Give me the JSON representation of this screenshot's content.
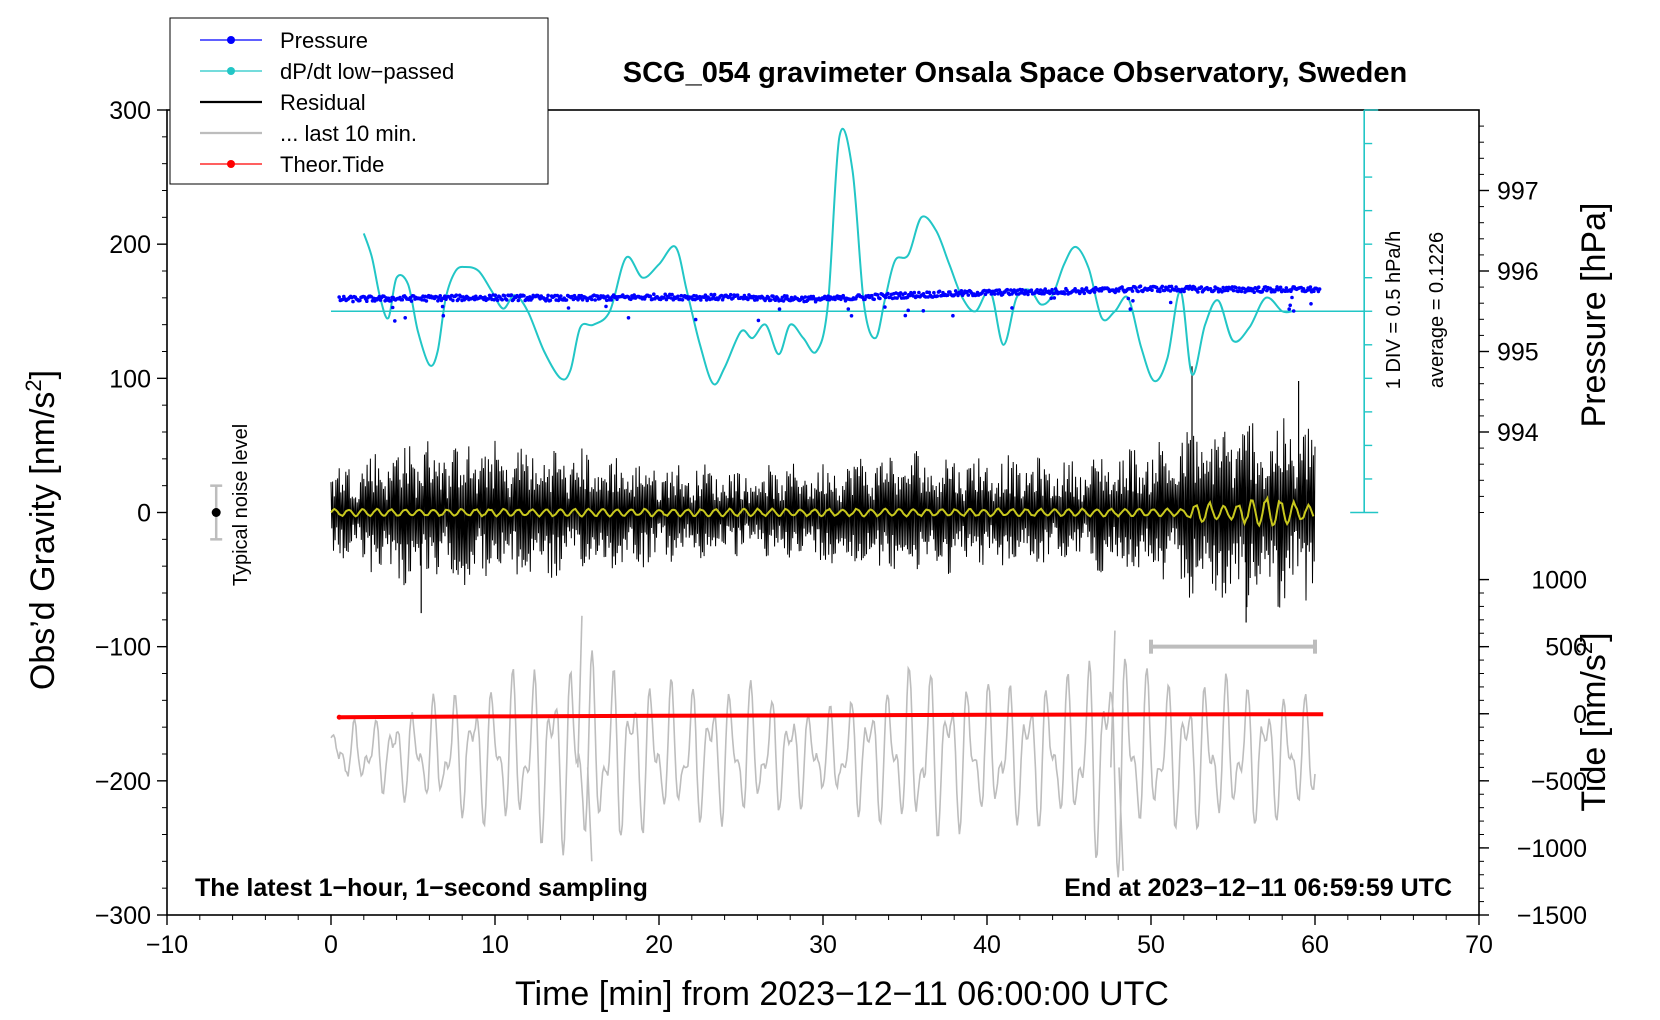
{
  "chart_data": {
    "type": "line",
    "title": "SCG_054 gravimeter Onsala Space Observatory, Sweden",
    "xlabel": "Time [min] from 2023−12−11 06:00:00 UTC",
    "ylabel": "Obs’d Gravity [nm/s²]",
    "ylabel_main": "Obs’d Gravity [nm/s",
    "ylabel_sup": "2",
    "ylabel_end": "]",
    "y2label_pressure": "Pressure [hPa]",
    "y2label_tide_main": "Tide [nm/s",
    "y2label_tide_sup": "2",
    "y2label_tide_end": "]",
    "xlim": [
      -10,
      70
    ],
    "ylim": [
      -300,
      300
    ],
    "x_ticks": [
      -10,
      0,
      10,
      20,
      30,
      40,
      50,
      60,
      70
    ],
    "x_tick_labels": [
      "−10",
      "0",
      "10",
      "20",
      "30",
      "40",
      "50",
      "60",
      "70"
    ],
    "y_ticks": [
      -300,
      -200,
      -100,
      0,
      100,
      200,
      300
    ],
    "y_tick_labels": [
      "−300",
      "−200",
      "−100",
      "0",
      "100",
      "200",
      "300"
    ],
    "pressure_ticks": [
      994,
      995,
      996,
      997
    ],
    "pressure_tick_labels": [
      "994",
      "995",
      "996",
      "997"
    ],
    "pressure_mapping": {
      "hpa_at_gravity_0": 993.0,
      "gravity_per_hpa": 60
    },
    "tide_ticks": [
      -1500,
      -1000,
      -500,
      0,
      500,
      1000
    ],
    "tide_tick_labels": [
      "−1500",
      "−1000",
      "−500",
      "0",
      "500",
      "1000"
    ],
    "tide_mapping": {
      "tide_0_at_gravity": -150,
      "gravity_per_tide": 0.1
    },
    "legend": [
      {
        "label": "Pressure",
        "color": "#0000ff",
        "marker": true
      },
      {
        "label": "dP/dt low−passed",
        "color": "#22c6c6",
        "marker": true
      },
      {
        "label": "Residual",
        "color": "#000000",
        "marker": false
      },
      {
        "label": "... last 10 min.",
        "color": "#bdbdbd",
        "marker": false
      },
      {
        "label": "Theor.Tide",
        "color": "#ff0000",
        "marker": true
      }
    ],
    "annotations": {
      "left_note": "The latest 1−hour, 1−second sampling",
      "right_note": "End at 2023−12−11 06:59:59 UTC",
      "noise_label": "Typical noise level",
      "dpdt_scale": "1 DIV = 0.5 hPa/h",
      "dpdt_average": "average = 0.1226"
    },
    "noise_bar": {
      "x": -7,
      "center": 0,
      "half_range": 20
    },
    "gray_scale_bar": {
      "x_start": 50,
      "x_end": 60,
      "y": -100
    },
    "dpdt_scale_axis": {
      "x": 63,
      "y_top": 300,
      "y_bottom": 0,
      "divisions": 12
    },
    "series": [
      {
        "name": "Pressure",
        "color": "#0000ff",
        "unit": "hPa",
        "x": [
          0.5,
          5,
          10,
          15,
          20,
          25,
          30,
          35,
          40,
          45,
          50,
          55,
          60
        ],
        "values": [
          995.65,
          995.66,
          995.67,
          995.66,
          995.68,
          995.67,
          995.65,
          995.7,
          995.73,
          995.75,
          995.78,
          995.77,
          995.77
        ]
      },
      {
        "name": "dP/dt low−passed",
        "color": "#22c6c6",
        "unit": "nm/s² plot scale",
        "baseline": 150,
        "x": [
          2,
          2.5,
          3,
          3.5,
          4,
          4.7,
          5.3,
          6,
          6.5,
          7,
          7.6,
          8.2,
          9,
          9.8,
          10.5,
          11.2,
          12,
          13,
          14,
          14.6,
          15.2,
          16,
          17,
          18,
          19,
          20,
          21,
          21.7,
          22.5,
          23.3,
          24,
          25,
          25.7,
          26.5,
          27.3,
          28,
          28.8,
          29.6,
          30.3,
          31,
          31.8,
          32.5,
          33.2,
          33.8,
          34.4,
          35.2,
          36,
          36.9,
          37.7,
          38.5,
          39.3,
          40.2,
          41,
          41.8,
          42.6,
          43.3,
          44,
          44.7,
          45.4,
          46.2,
          47,
          47.8,
          48.6,
          49.4,
          50.2,
          51,
          51.8,
          52.5,
          53.3,
          54.1,
          55,
          56,
          57,
          58,
          58.6
        ],
        "values": [
          208,
          190,
          160,
          145,
          175,
          170,
          135,
          110,
          120,
          160,
          180,
          183,
          180,
          165,
          152,
          162,
          150,
          120,
          100,
          106,
          138,
          140,
          150,
          190,
          175,
          185,
          198,
          165,
          125,
          96,
          108,
          135,
          130,
          140,
          118,
          140,
          130,
          120,
          155,
          280,
          255,
          155,
          130,
          160,
          188,
          192,
          220,
          210,
          185,
          160,
          150,
          165,
          125,
          160,
          166,
          155,
          162,
          185,
          198,
          182,
          145,
          150,
          160,
          123,
          98,
          115,
          165,
          103,
          140,
          158,
          128,
          138,
          160,
          150,
          150
        ]
      },
      {
        "name": "Residual",
        "color": "#000000",
        "unit": "nm/s²",
        "x": [
          0,
          5,
          10,
          15,
          20,
          25,
          30,
          35,
          40,
          45,
          50,
          55,
          60
        ],
        "envelope": [
          35,
          60,
          55,
          50,
          40,
          35,
          40,
          50,
          45,
          40,
          55,
          75,
          70
        ],
        "extremes": [
          {
            "x": 52.5,
            "value": 109
          },
          {
            "x": 59,
            "value": 98
          },
          {
            "x": 55.8,
            "value": -82
          },
          {
            "x": 5.5,
            "value": -75
          }
        ]
      },
      {
        "name": "Residual (low-passed)",
        "color": "#c8c81e",
        "unit": "nm/s²",
        "x": [
          0,
          52,
          53,
          55,
          57,
          60
        ],
        "envelope": [
          3,
          3,
          9,
          6,
          14,
          5
        ]
      },
      {
        "name": "... last 10 min.",
        "color": "#bdbdbd",
        "unit": "nm/s²",
        "baseline": -180,
        "x": [
          0,
          10,
          15.3,
          20,
          25,
          30,
          36,
          40,
          45,
          47.8,
          50,
          55,
          60
        ],
        "envelope": [
          18,
          60,
          80,
          55,
          55,
          35,
          70,
          55,
          60,
          100,
          60,
          60,
          45
        ],
        "extremes": [
          {
            "x": 15.3,
            "value": -77
          },
          {
            "x": 15.9,
            "value": -260
          },
          {
            "x": 47.8,
            "value": -88
          },
          {
            "x": 48.3,
            "value": -267
          }
        ]
      },
      {
        "name": "Theor.Tide",
        "color": "#ff0000",
        "unit": "nm/s²",
        "x": [
          0.5,
          10,
          20,
          30,
          40,
          50,
          60.5
        ],
        "values": [
          -26,
          -20,
          -15,
          -12,
          -8,
          -5,
          -3
        ]
      }
    ]
  }
}
